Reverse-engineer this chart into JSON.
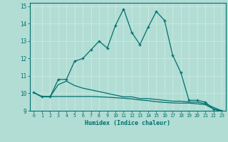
{
  "xlabel": "Humidex (Indice chaleur)",
  "background_color": "#b2ddd4",
  "grid_color": "#c8e8e0",
  "line_color": "#007070",
  "xlim": [
    -0.5,
    23.5
  ],
  "ylim": [
    9,
    15.2
  ],
  "xticks": [
    0,
    1,
    2,
    3,
    4,
    5,
    6,
    7,
    8,
    9,
    10,
    11,
    12,
    13,
    14,
    15,
    16,
    17,
    18,
    19,
    20,
    21,
    22,
    23
  ],
  "yticks": [
    9,
    10,
    11,
    12,
    13,
    14,
    15
  ],
  "series1_x": [
    0,
    1,
    2,
    3,
    4,
    5,
    6,
    7,
    8,
    9,
    10,
    11,
    12,
    13,
    14,
    15,
    16,
    17,
    18,
    19,
    20,
    21,
    22,
    23
  ],
  "series1_y": [
    10.05,
    9.8,
    9.8,
    10.8,
    10.8,
    11.85,
    12.0,
    12.5,
    13.0,
    12.6,
    13.9,
    14.85,
    13.5,
    12.8,
    13.8,
    14.7,
    14.2,
    12.2,
    11.2,
    9.6,
    9.6,
    9.5,
    9.1,
    9.0
  ],
  "series2_x": [
    0,
    1,
    2,
    3,
    4,
    5,
    6,
    7,
    8,
    9,
    10,
    11,
    12,
    13,
    14,
    15,
    16,
    17,
    18,
    19,
    20,
    21,
    22,
    23
  ],
  "series2_y": [
    10.05,
    9.8,
    9.8,
    10.5,
    10.7,
    10.45,
    10.3,
    10.2,
    10.1,
    10.0,
    9.9,
    9.8,
    9.8,
    9.7,
    9.7,
    9.65,
    9.6,
    9.55,
    9.55,
    9.5,
    9.5,
    9.4,
    9.2,
    9.0
  ],
  "series3_x": [
    0,
    1,
    2,
    3,
    4,
    5,
    6,
    7,
    8,
    9,
    10,
    11,
    12,
    13,
    14,
    15,
    16,
    17,
    18,
    19,
    20,
    21,
    22,
    23
  ],
  "series3_y": [
    10.05,
    9.82,
    9.82,
    9.82,
    9.82,
    9.82,
    9.82,
    9.82,
    9.8,
    9.78,
    9.75,
    9.72,
    9.68,
    9.62,
    9.58,
    9.52,
    9.48,
    9.45,
    9.44,
    9.44,
    9.4,
    9.35,
    9.1,
    8.95
  ]
}
